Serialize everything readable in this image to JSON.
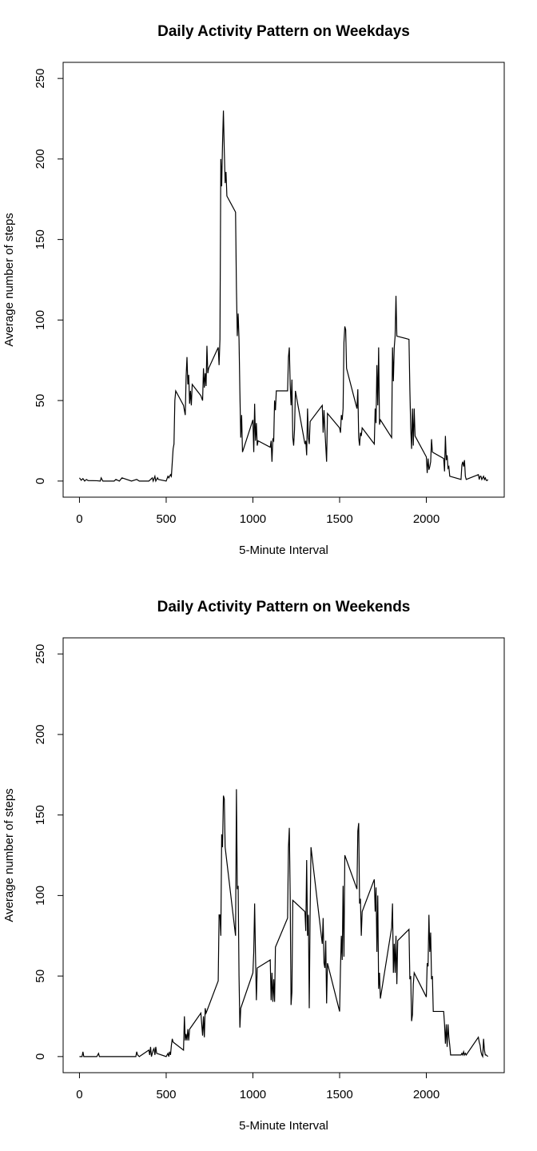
{
  "chart_data": [
    {
      "type": "line",
      "title": "Daily Activity Pattern on Weekdays",
      "xlabel": "5-Minute Interval",
      "ylabel": "Average number of steps",
      "x": [
        0,
        10,
        20,
        30,
        40,
        50,
        100,
        120,
        125,
        135,
        200,
        210,
        230,
        245,
        300,
        330,
        345,
        400,
        420,
        425,
        435,
        440,
        450,
        455,
        500,
        510,
        515,
        525,
        530,
        540,
        545,
        550,
        555,
        600,
        610,
        615,
        620,
        625,
        630,
        635,
        640,
        645,
        650,
        700,
        710,
        715,
        720,
        725,
        730,
        735,
        740,
        745,
        800,
        805,
        810,
        815,
        820,
        825,
        830,
        835,
        840,
        845,
        850,
        900,
        905,
        910,
        915,
        920,
        925,
        930,
        935,
        940,
        1000,
        1005,
        1010,
        1015,
        1020,
        1025,
        1030,
        1100,
        1105,
        1110,
        1115,
        1120,
        1125,
        1130,
        1135,
        1200,
        1205,
        1210,
        1215,
        1220,
        1225,
        1230,
        1235,
        1240,
        1245,
        1300,
        1305,
        1310,
        1315,
        1320,
        1325,
        1330,
        1400,
        1405,
        1410,
        1415,
        1420,
        1425,
        1430,
        1500,
        1505,
        1510,
        1515,
        1520,
        1525,
        1530,
        1535,
        1540,
        1600,
        1605,
        1610,
        1615,
        1620,
        1625,
        1630,
        1700,
        1705,
        1710,
        1715,
        1720,
        1725,
        1730,
        1735,
        1800,
        1805,
        1810,
        1815,
        1820,
        1825,
        1830,
        1900,
        1905,
        1910,
        1915,
        1920,
        1925,
        1930,
        1935,
        2000,
        2005,
        2010,
        2015,
        2020,
        2025,
        2030,
        2035,
        2100,
        2105,
        2110,
        2115,
        2120,
        2125,
        2130,
        2135,
        2200,
        2205,
        2210,
        2215,
        2220,
        2225,
        2230,
        2300,
        2305,
        2310,
        2315,
        2320,
        2325,
        2330,
        2335,
        2340,
        2345,
        2350,
        2355
      ],
      "values": [
        2,
        0.5,
        1.5,
        0,
        1,
        0.3,
        0.2,
        0,
        2,
        0,
        0,
        1,
        0,
        2,
        0,
        1,
        0,
        0,
        2,
        0,
        3,
        0,
        2,
        1,
        0,
        3,
        2,
        4,
        3,
        20,
        23,
        50,
        56,
        47,
        41,
        65,
        77,
        60,
        66,
        48,
        56,
        47,
        60,
        53,
        50,
        70,
        58,
        67,
        59,
        84,
        67,
        70,
        83,
        72,
        88,
        200,
        183,
        210,
        230,
        205,
        185,
        192,
        177,
        167,
        120,
        90,
        104,
        88,
        55,
        27,
        41,
        18,
        38,
        18,
        48,
        25,
        36,
        22,
        25,
        21,
        25,
        12,
        26,
        25,
        50,
        44,
        56,
        56,
        77,
        83,
        60,
        47,
        63,
        27,
        22,
        32,
        56,
        23,
        25,
        16,
        45,
        27,
        23,
        37,
        47,
        30,
        44,
        32,
        22,
        12,
        42,
        33,
        30,
        41,
        38,
        45,
        86,
        96,
        94,
        70,
        45,
        57,
        27,
        22,
        30,
        28,
        33,
        23,
        45,
        36,
        72,
        47,
        83,
        35,
        38,
        27,
        83,
        62,
        83,
        90,
        115,
        90,
        88,
        57,
        33,
        20,
        45,
        22,
        45,
        28,
        15,
        5,
        14,
        7,
        9,
        12,
        26,
        18,
        14,
        6,
        28,
        13,
        16,
        8,
        9,
        3,
        1,
        10,
        12,
        9,
        13,
        3,
        1,
        4,
        1,
        3,
        3,
        1,
        2,
        3,
        1,
        2,
        0.5,
        0.3,
        1
      ],
      "color": "#000000",
      "xlim": [
        -94.2,
        2449.2
      ],
      "ylim": [
        -10,
        260
      ],
      "xticks": [
        0,
        500,
        1000,
        1500,
        2000
      ],
      "yticks": [
        0,
        50,
        100,
        150,
        200,
        250
      ]
    },
    {
      "type": "line",
      "title": "Daily Activity Pattern on Weekends",
      "xlabel": "5-Minute Interval",
      "ylabel": "Average number of steps",
      "x": [
        0,
        10,
        15,
        20,
        25,
        100,
        110,
        115,
        200,
        300,
        325,
        330,
        335,
        345,
        400,
        405,
        410,
        415,
        420,
        425,
        430,
        435,
        440,
        445,
        500,
        510,
        515,
        520,
        525,
        530,
        535,
        540,
        600,
        605,
        610,
        615,
        620,
        625,
        630,
        635,
        700,
        710,
        715,
        720,
        725,
        730,
        800,
        805,
        810,
        815,
        820,
        825,
        830,
        835,
        840,
        900,
        905,
        910,
        915,
        920,
        925,
        930,
        1000,
        1005,
        1010,
        1015,
        1020,
        1025,
        1100,
        1105,
        1110,
        1115,
        1120,
        1125,
        1130,
        1200,
        1205,
        1210,
        1215,
        1220,
        1225,
        1230,
        1300,
        1305,
        1310,
        1315,
        1320,
        1325,
        1330,
        1335,
        1400,
        1405,
        1410,
        1415,
        1420,
        1425,
        1430,
        1500,
        1505,
        1510,
        1515,
        1520,
        1525,
        1530,
        1600,
        1605,
        1610,
        1615,
        1620,
        1625,
        1630,
        1700,
        1705,
        1710,
        1715,
        1720,
        1725,
        1730,
        1735,
        1800,
        1805,
        1810,
        1815,
        1820,
        1825,
        1830,
        1835,
        1900,
        1905,
        1910,
        1915,
        1920,
        1925,
        1930,
        2000,
        2005,
        2010,
        2015,
        2020,
        2025,
        2030,
        2035,
        2040,
        2100,
        2105,
        2110,
        2115,
        2120,
        2125,
        2130,
        2135,
        2140,
        2200,
        2205,
        2210,
        2215,
        2220,
        2225,
        2230,
        2300,
        2305,
        2310,
        2315,
        2320,
        2325,
        2330,
        2335,
        2340,
        2345,
        2355
      ],
      "values": [
        0,
        0,
        0,
        3,
        0,
        0,
        2,
        0,
        0,
        0,
        0,
        3,
        1,
        0,
        4,
        1,
        6,
        0,
        2,
        4,
        5,
        1,
        6,
        2,
        0,
        2,
        0,
        3,
        1,
        7,
        11,
        9,
        4,
        25,
        10,
        14,
        10,
        17,
        10,
        17,
        27,
        13,
        25,
        12,
        30,
        27,
        47,
        88,
        88,
        75,
        138,
        130,
        162,
        160,
        130,
        75,
        166,
        104,
        106,
        50,
        18,
        30,
        52,
        65,
        95,
        63,
        35,
        55,
        60,
        35,
        52,
        34,
        48,
        34,
        68,
        86,
        130,
        142,
        100,
        32,
        40,
        97,
        90,
        78,
        122,
        75,
        88,
        30,
        90,
        130,
        70,
        86,
        58,
        55,
        72,
        33,
        58,
        28,
        55,
        75,
        60,
        106,
        62,
        125,
        104,
        140,
        145,
        95,
        98,
        75,
        90,
        110,
        90,
        105,
        65,
        100,
        42,
        52,
        36,
        80,
        95,
        52,
        70,
        52,
        75,
        45,
        72,
        79,
        48,
        50,
        22,
        26,
        45,
        52,
        37,
        58,
        56,
        88,
        65,
        77,
        48,
        50,
        28,
        28,
        20,
        8,
        20,
        6,
        20,
        12,
        7,
        1,
        1,
        2,
        1,
        3,
        1,
        2,
        1,
        12,
        9,
        7,
        3,
        1,
        0,
        11,
        4,
        1,
        1,
        0
      ],
      "color": "#000000",
      "xlim": [
        -94.2,
        2449.2
      ],
      "ylim": [
        -10,
        260
      ],
      "xticks": [
        0,
        500,
        1000,
        1500,
        2000
      ],
      "yticks": [
        0,
        50,
        100,
        150,
        200,
        250
      ]
    }
  ]
}
